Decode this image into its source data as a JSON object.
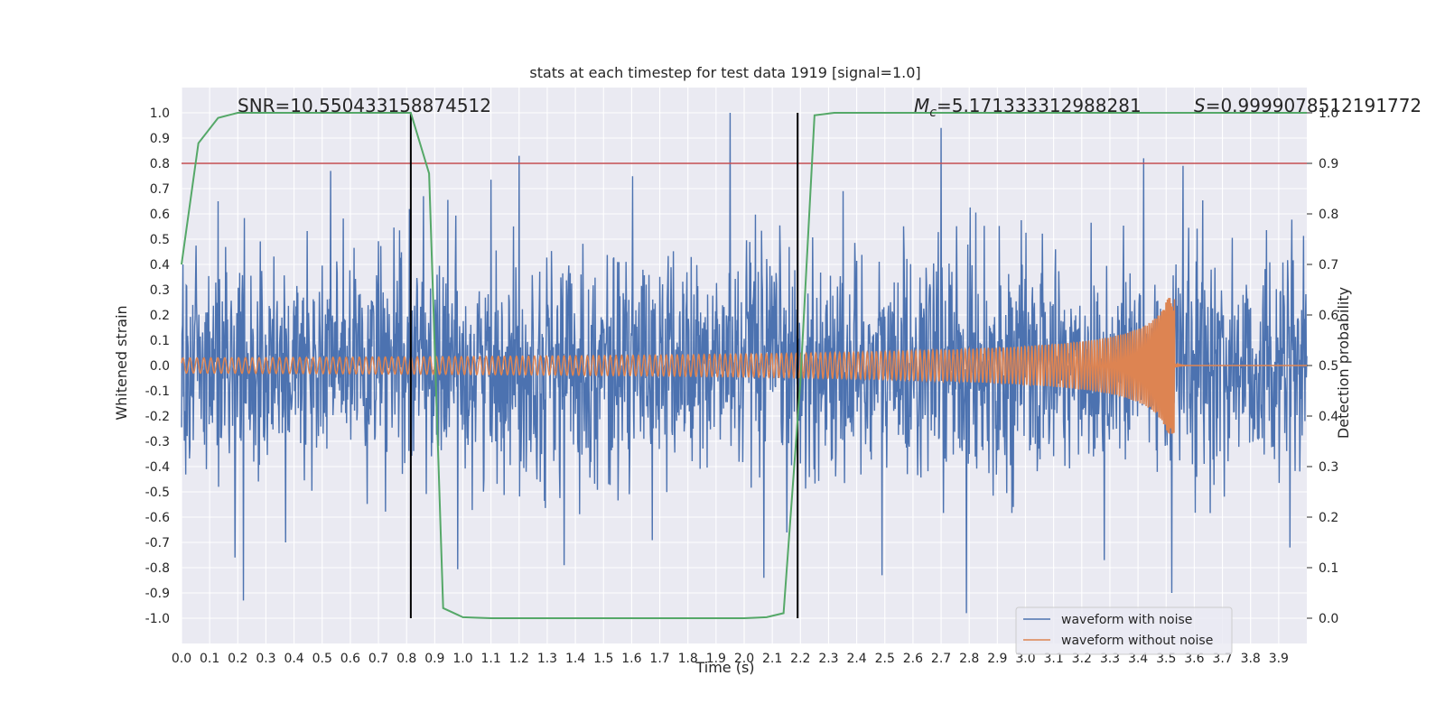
{
  "chart_data": {
    "type": "line",
    "title": "stats at each timestep for test data 1919 [signal=1.0]",
    "xlabel": "Time (s)",
    "ylabel": "Whitened strain",
    "y2label": "Detection probability",
    "xlim": [
      0.0,
      4.0
    ],
    "ylim": [
      -1.1,
      1.1
    ],
    "y2lim": [
      -0.05,
      1.05
    ],
    "xticks": [
      "0.0",
      "0.1",
      "0.2",
      "0.3",
      "0.4",
      "0.5",
      "0.6",
      "0.7",
      "0.8",
      "0.9",
      "1.0",
      "1.1",
      "1.2",
      "1.3",
      "1.4",
      "1.5",
      "1.6",
      "1.7",
      "1.8",
      "1.9",
      "2.0",
      "2.1",
      "2.2",
      "2.3",
      "2.4",
      "2.5",
      "2.6",
      "2.7",
      "2.8",
      "2.9",
      "3.0",
      "3.1",
      "3.2",
      "3.3",
      "3.4",
      "3.5",
      "3.6",
      "3.7",
      "3.8",
      "3.9"
    ],
    "yticks": [
      "1.0",
      "0.9",
      "0.8",
      "0.7",
      "0.6",
      "0.5",
      "0.4",
      "0.3",
      "0.2",
      "0.1",
      "0.0",
      "-0.1",
      "-0.2",
      "-0.3",
      "-0.4",
      "-0.5",
      "-0.6",
      "-0.7",
      "-0.8",
      "-0.9",
      "-1.0"
    ],
    "y2ticks": [
      "0.0",
      "0.1",
      "0.2",
      "0.3",
      "0.4",
      "0.5",
      "0.6",
      "0.7",
      "0.8",
      "0.9",
      "1.0"
    ],
    "annotations": {
      "snr": "SNR=10.550433158874512",
      "mc_symbol": "M",
      "mc_sub": "c",
      "mc_value": "=5.171333312988281",
      "s_symbol": "S",
      "s_value": "=0.9999078512191772"
    },
    "threshold": {
      "value": 0.8,
      "color": "#c44e52"
    },
    "vlines": [
      0.815,
      2.19
    ],
    "noise_series": {
      "name": "waveform with noise",
      "color": "#4c72b0",
      "amplitude_rms": 0.22,
      "peaks": [
        {
          "t": 0.22,
          "v": -0.93
        },
        {
          "t": 0.13,
          "v": 0.65
        },
        {
          "t": 0.53,
          "v": 0.77
        },
        {
          "t": 0.86,
          "v": 0.67
        },
        {
          "t": 1.2,
          "v": 0.83
        },
        {
          "t": 1.95,
          "v": 1.0
        },
        {
          "t": 2.7,
          "v": 0.94
        },
        {
          "t": 2.79,
          "v": -0.98
        },
        {
          "t": 3.42,
          "v": 0.82
        },
        {
          "t": 3.52,
          "v": -0.9
        },
        {
          "t": 3.56,
          "v": 0.79
        },
        {
          "t": 1.36,
          "v": -0.79
        },
        {
          "t": 2.07,
          "v": -0.84
        },
        {
          "t": 2.49,
          "v": -0.83
        },
        {
          "t": 3.28,
          "v": -0.77
        },
        {
          "t": 0.19,
          "v": -0.76
        },
        {
          "t": 0.37,
          "v": -0.7
        },
        {
          "t": 3.94,
          "v": -0.72
        }
      ]
    },
    "clean_series": {
      "name": "waveform without noise",
      "color": "#dd8452",
      "start_amplitude": 0.03,
      "end_amplitude": 0.27,
      "end_time": 3.53
    },
    "prob_series": {
      "name": "detection probability",
      "color": "#55a868",
      "t": [
        0.0,
        0.06,
        0.13,
        0.2,
        0.3,
        0.5,
        0.7,
        0.815,
        0.88,
        0.93,
        1.0,
        1.1,
        1.5,
        2.0,
        2.08,
        2.14,
        2.2,
        2.25,
        2.32,
        3.5,
        4.0
      ],
      "p": [
        0.7,
        0.94,
        0.99,
        1.0,
        1.0,
        1.0,
        1.0,
        1.0,
        0.88,
        0.02,
        0.002,
        0.0,
        0.0,
        0.0,
        0.002,
        0.01,
        0.47,
        0.995,
        1.0,
        1.0,
        1.0
      ]
    },
    "legend": {
      "placement": "lower-right",
      "entries": [
        {
          "label": "waveform with noise",
          "color": "#4c72b0"
        },
        {
          "label": "waveform without noise",
          "color": "#dd8452"
        }
      ]
    }
  }
}
